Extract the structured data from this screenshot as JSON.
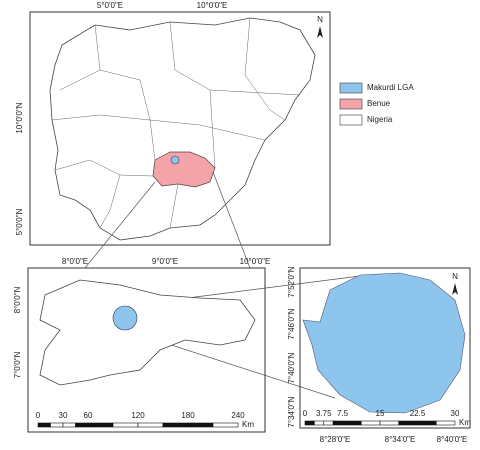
{
  "map": {
    "top_panel": {
      "x_labels": [
        "5°0'0\"E",
        "10°0'0\"E"
      ],
      "y_labels": [
        "10°0'0\"N",
        "5°0'0\"N"
      ],
      "north": "N"
    },
    "legend": {
      "items": [
        {
          "label": "Makurdi LGA",
          "color": "#8ec5ec"
        },
        {
          "label": "Benue",
          "color": "#f4a3a8"
        },
        {
          "label": "Nigeria",
          "color": "#ffffff"
        }
      ]
    },
    "benue_panel": {
      "x_labels": [
        "8°0'0\"E",
        "9°0'0\"E",
        "10°0'0\"E"
      ],
      "y_labels": [
        "8°0'0\"N",
        "7°0'0\"N"
      ],
      "scale": {
        "ticks": [
          0,
          30,
          60,
          120,
          180,
          240
        ],
        "unit": "Km"
      }
    },
    "makurdi_panel": {
      "x_labels": [
        "8°28'0\"E",
        "8°34'0\"E",
        "8°40'0\"E"
      ],
      "y_labels": [
        "7°52'0\"N",
        "7°46'0\"N",
        "7°40'0\"N",
        "7°34'0\"N"
      ],
      "north": "N",
      "scale": {
        "ticks": [
          0,
          3.75,
          7.5,
          15,
          22.5,
          30
        ],
        "unit": "Km"
      }
    }
  }
}
